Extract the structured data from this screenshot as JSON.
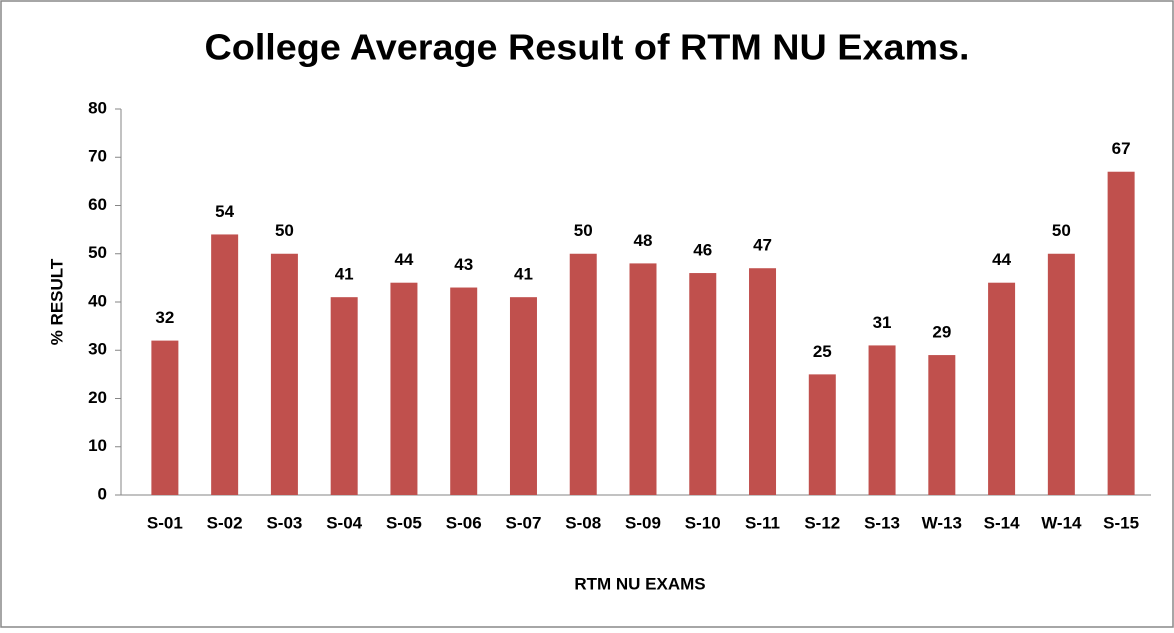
{
  "chart_data": {
    "type": "bar",
    "title": "College Average Result of RTM NU Exams.",
    "x_label": "RTM NU EXAMS",
    "y_label": "% RESULT",
    "categories": [
      "S-01",
      "S-02",
      "S-03",
      "S-04",
      "S-05",
      "S-06",
      "S-07",
      "S-08",
      "S-09",
      "S-10",
      "S-11",
      "S-12",
      "S-13",
      "W-13",
      "S-14",
      "W-14",
      "S-15"
    ],
    "values": [
      32,
      54,
      50,
      41,
      44,
      43,
      41,
      50,
      48,
      46,
      47,
      25,
      31,
      29,
      44,
      50,
      67
    ],
    "color": "#c0504d",
    "ylim": [
      0,
      80
    ],
    "yticks": [
      0,
      10,
      20,
      30,
      40,
      50,
      60,
      70,
      80
    ],
    "grid": false
  }
}
